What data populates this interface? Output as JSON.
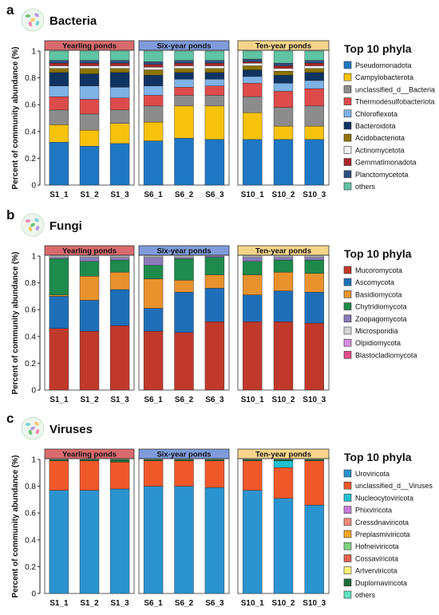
{
  "figure": {
    "ylabel": "Percent of community abundance (%)",
    "legend_title": "Top 10 phyla",
    "yticks": [
      "0",
      "0.2",
      "0.4",
      "0.6",
      "0.8",
      "1"
    ],
    "groups": [
      {
        "label": "Yearling ponds",
        "color": "#d96a6e"
      },
      {
        "label": "Six-year ponds",
        "color": "#7f9bdc"
      },
      {
        "label": "Ten-year ponds",
        "color": "#f6d58b"
      }
    ]
  },
  "chart_data": [
    {
      "type": "bar",
      "stacked": true,
      "panel": "a",
      "title": "Bacteria",
      "ylabel": "Percent of community abundance (%)",
      "ylim": [
        0,
        1
      ],
      "legend_title": "Top 10 phyla",
      "categories": [
        "S1_1",
        "S1_2",
        "S1_3",
        "S6_1",
        "S6_2",
        "S6_3",
        "S10_1",
        "S10_2",
        "S10_3"
      ],
      "series": [
        {
          "name": "Pseudomonadota",
          "color": "#1f77c4",
          "values": [
            0.32,
            0.29,
            0.31,
            0.33,
            0.35,
            0.34,
            0.34,
            0.34,
            0.34
          ]
        },
        {
          "name": "Campylobacterota",
          "color": "#f7c20c",
          "values": [
            0.13,
            0.12,
            0.15,
            0.14,
            0.24,
            0.25,
            0.2,
            0.1,
            0.1
          ]
        },
        {
          "name": "unclassified_d__Bacteria",
          "color": "#8c8c8c",
          "values": [
            0.11,
            0.12,
            0.1,
            0.12,
            0.08,
            0.08,
            0.12,
            0.14,
            0.15
          ]
        },
        {
          "name": "Thermodesulfobacteriota",
          "color": "#dd4b4b",
          "values": [
            0.1,
            0.11,
            0.09,
            0.08,
            0.06,
            0.07,
            0.1,
            0.12,
            0.13
          ]
        },
        {
          "name": "Chloroflexota",
          "color": "#7fb2e5",
          "values": [
            0.08,
            0.1,
            0.08,
            0.07,
            0.06,
            0.05,
            0.05,
            0.06,
            0.06
          ]
        },
        {
          "name": "Bacteroidota",
          "color": "#0f3462",
          "values": [
            0.1,
            0.09,
            0.11,
            0.08,
            0.05,
            0.05,
            0.05,
            0.06,
            0.06
          ]
        },
        {
          "name": "Acidobacteriota",
          "color": "#8c7400",
          "values": [
            0.03,
            0.04,
            0.03,
            0.04,
            0.03,
            0.03,
            0.03,
            0.03,
            0.03
          ]
        },
        {
          "name": "Actinomycetota",
          "color": "#f3f3f3",
          "values": [
            0.02,
            0.02,
            0.02,
            0.02,
            0.02,
            0.02,
            0.02,
            0.02,
            0.02
          ]
        },
        {
          "name": "Gemmatimonadota",
          "color": "#a8262a",
          "values": [
            0.02,
            0.02,
            0.02,
            0.02,
            0.02,
            0.02,
            0.01,
            0.02,
            0.02
          ]
        },
        {
          "name": "Planctomycetota",
          "color": "#2f4f7f",
          "values": [
            0.02,
            0.02,
            0.02,
            0.02,
            0.02,
            0.02,
            0.02,
            0.02,
            0.02
          ]
        },
        {
          "name": "others",
          "color": "#5fc3a4",
          "values": [
            0.07,
            0.07,
            0.07,
            0.08,
            0.07,
            0.07,
            0.06,
            0.09,
            0.07
          ]
        }
      ]
    },
    {
      "type": "bar",
      "stacked": true,
      "panel": "b",
      "title": "Fungi",
      "ylabel": "Percent of community abundance (%)",
      "ylim": [
        0,
        1
      ],
      "legend_title": "Top 10 phyla",
      "categories": [
        "S1_1",
        "S1_2",
        "S1_3",
        "S6_1",
        "S6_2",
        "S6_3",
        "S10_1",
        "S10_2",
        "S10_3"
      ],
      "series": [
        {
          "name": "Mucoromycota",
          "color": "#c0392b",
          "values": [
            0.46,
            0.44,
            0.48,
            0.44,
            0.43,
            0.51,
            0.51,
            0.51,
            0.5
          ]
        },
        {
          "name": "Ascomycota",
          "color": "#1f6fb8",
          "values": [
            0.24,
            0.23,
            0.27,
            0.17,
            0.3,
            0.25,
            0.2,
            0.23,
            0.23
          ]
        },
        {
          "name": "Basidiomycota",
          "color": "#e8922e",
          "values": [
            0.01,
            0.18,
            0.13,
            0.22,
            0.09,
            0.1,
            0.15,
            0.14,
            0.14
          ]
        },
        {
          "name": "Chytridiomycota",
          "color": "#1e8a4c",
          "values": [
            0.27,
            0.11,
            0.09,
            0.1,
            0.16,
            0.13,
            0.1,
            0.09,
            0.1
          ]
        },
        {
          "name": "Zoopagomycota",
          "color": "#8a7ab8",
          "values": [
            0.01,
            0.03,
            0.02,
            0.06,
            0.01,
            0.01,
            0.03,
            0.02,
            0.02
          ]
        },
        {
          "name": "Microsporidia",
          "color": "#d6d6d6",
          "values": [
            0.01,
            0.01,
            0.01,
            0.01,
            0.01,
            0.0,
            0.01,
            0.01,
            0.01
          ]
        },
        {
          "name": "Olpidiomycota",
          "color": "#d58ee0",
          "values": [
            0.0,
            0.0,
            0.0,
            0.0,
            0.0,
            0.0,
            0.0,
            0.0,
            0.0
          ]
        },
        {
          "name": "Blastocladiomycota",
          "color": "#e04b8c",
          "values": [
            0.0,
            0.0,
            0.0,
            0.0,
            0.0,
            0.0,
            0.0,
            0.0,
            0.0
          ]
        }
      ]
    },
    {
      "type": "bar",
      "stacked": true,
      "panel": "c",
      "title": "Viruses",
      "ylabel": "Percent of community abundance (%)",
      "ylim": [
        0,
        1
      ],
      "legend_title": "Top 10 phyla",
      "categories": [
        "S1_1",
        "S1_2",
        "S1_3",
        "S6_1",
        "S6_2",
        "S6_3",
        "S10_1",
        "S10_2",
        "S10_3"
      ],
      "series": [
        {
          "name": "Uroviricota",
          "color": "#2a93d0",
          "values": [
            0.77,
            0.77,
            0.78,
            0.8,
            0.8,
            0.79,
            0.77,
            0.71,
            0.66
          ]
        },
        {
          "name": "unclassified_d__Viruses",
          "color": "#f0582a",
          "values": [
            0.22,
            0.22,
            0.2,
            0.19,
            0.19,
            0.2,
            0.22,
            0.23,
            0.33
          ]
        },
        {
          "name": "Nucleocytoviricota",
          "color": "#1fc0d0",
          "values": [
            0.0,
            0.0,
            0.0,
            0.0,
            0.0,
            0.0,
            0.0,
            0.05,
            0.0
          ]
        },
        {
          "name": "Phixviricota",
          "color": "#c77bd9",
          "values": [
            0.0,
            0.0,
            0.0,
            0.0,
            0.0,
            0.0,
            0.0,
            0.0,
            0.0
          ]
        },
        {
          "name": "Cressdnaviricota",
          "color": "#f08a7c",
          "values": [
            0.0,
            0.0,
            0.0,
            0.0,
            0.0,
            0.0,
            0.0,
            0.0,
            0.0
          ]
        },
        {
          "name": "Preplasmiviricota",
          "color": "#f5a623",
          "values": [
            0.0,
            0.0,
            0.0,
            0.0,
            0.0,
            0.0,
            0.0,
            0.0,
            0.0
          ]
        },
        {
          "name": "Hofneiviricota",
          "color": "#7ed37b",
          "values": [
            0.0,
            0.0,
            0.0,
            0.0,
            0.0,
            0.0,
            0.0,
            0.0,
            0.0
          ]
        },
        {
          "name": "Cossaviricota",
          "color": "#e8604f",
          "values": [
            0.0,
            0.0,
            0.0,
            0.0,
            0.0,
            0.0,
            0.0,
            0.0,
            0.0
          ]
        },
        {
          "name": "Artverviricota",
          "color": "#f8f07a",
          "values": [
            0.0,
            0.0,
            0.0,
            0.0,
            0.0,
            0.0,
            0.0,
            0.0,
            0.0
          ]
        },
        {
          "name": "Duplornaviricota",
          "color": "#1f6b3a",
          "values": [
            0.01,
            0.01,
            0.02,
            0.01,
            0.01,
            0.01,
            0.01,
            0.01,
            0.01
          ]
        },
        {
          "name": "others",
          "color": "#5fe3c2",
          "values": [
            0.0,
            0.0,
            0.0,
            0.0,
            0.0,
            0.0,
            0.0,
            0.0,
            0.0
          ]
        }
      ]
    }
  ]
}
